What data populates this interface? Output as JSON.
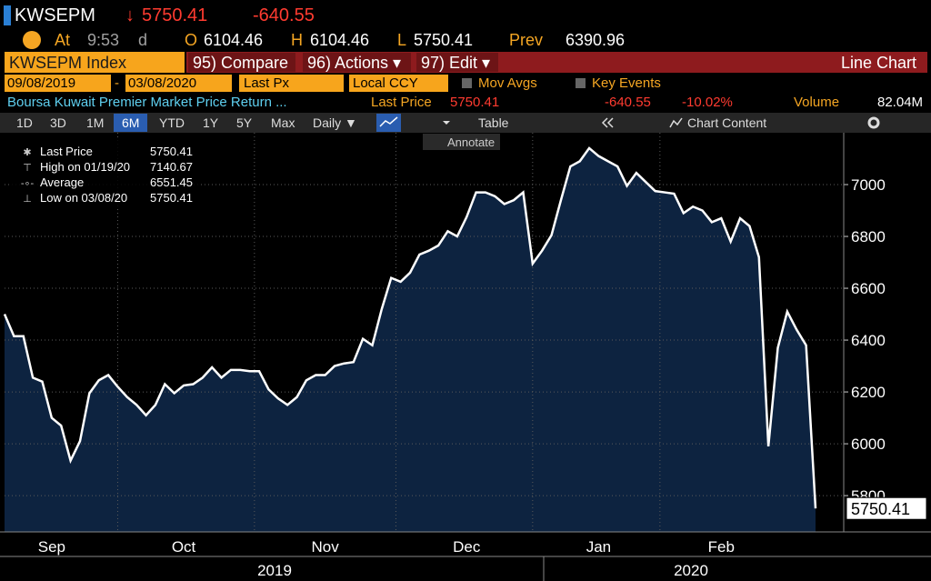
{
  "header": {
    "ticker": "KWSEPM",
    "arrow": "↓",
    "last": "5750.41",
    "change": "-640.55",
    "at_label": "At",
    "time": "9:53",
    "time_flag": "d",
    "open_label": "O",
    "open": "6104.46",
    "high_label": "H",
    "high": "6104.46",
    "low_label": "L",
    "low": "5750.41",
    "prev_label": "Prev",
    "prev": "6390.96"
  },
  "command_bar": {
    "security": "KWSEPM Index",
    "buttons": [
      "95) Compare",
      "96) Actions ▾",
      "97) Edit ▾"
    ],
    "chart_type": "Line Chart"
  },
  "settings": {
    "start_date": "09/08/2019",
    "date_sep": "-",
    "end_date": "03/08/2020",
    "field": "Last Px",
    "currency": "Local CCY",
    "options": [
      "Mov Avgs",
      "Key Events"
    ]
  },
  "info": {
    "description": "Boursa Kuwait Premier Market Price Return ...",
    "last_price_label": "Last Price",
    "last_price": "5750.41",
    "change": "-640.55",
    "change_pct": "-10.02%",
    "volume_label": "Volume",
    "volume": "82.04M"
  },
  "toolbar": {
    "periods": [
      "1D",
      "3D",
      "1M",
      "6M",
      "YTD",
      "1Y",
      "5Y",
      "Max"
    ],
    "frequency": "Daily ▼",
    "table": "Table",
    "chart_content": "Chart Content",
    "annotate": "Annotate"
  },
  "chart_data": {
    "type": "line",
    "color": "#ffffff",
    "area_color": "#0d2340",
    "grid": true,
    "categories": [
      null,
      null,
      null,
      null,
      null,
      "Sep",
      null,
      null,
      null,
      null,
      null,
      null,
      null,
      null,
      null,
      null,
      null,
      null,
      null,
      "Oct",
      null,
      null,
      null,
      null,
      null,
      null,
      null,
      null,
      null,
      null,
      null,
      null,
      null,
      null,
      "Nov",
      null,
      null,
      null,
      null,
      null,
      null,
      null,
      null,
      null,
      null,
      null,
      null,
      null,
      null,
      "Dec",
      null,
      null,
      null,
      null,
      null,
      null,
      null,
      null,
      null,
      null,
      null,
      null,
      null,
      "Jan",
      null,
      null,
      null,
      null,
      null,
      null,
      null,
      null,
      null,
      null,
      null,
      null,
      "Feb",
      null,
      null,
      null,
      null,
      null,
      null,
      null,
      null,
      null,
      null
    ],
    "values": [
      6500,
      6415,
      6415,
      6255,
      6240,
      6100,
      6070,
      5935,
      6010,
      6195,
      6245,
      6265,
      6220,
      6180,
      6150,
      6110,
      6150,
      6230,
      6195,
      6225,
      6230,
      6255,
      6295,
      6255,
      6285,
      6285,
      6280,
      6280,
      6210,
      6175,
      6150,
      6180,
      6245,
      6265,
      6265,
      6300,
      6310,
      6315,
      6405,
      6380,
      6520,
      6640,
      6625,
      6660,
      6730,
      6745,
      6765,
      6820,
      6800,
      6875,
      6970,
      6970,
      6955,
      6925,
      6940,
      6970,
      6695,
      6745,
      6805,
      6940,
      7070,
      7090,
      7140.67,
      7110,
      7090,
      7070,
      6995,
      7045,
      7010,
      6975,
      6970,
      6965,
      6890,
      6915,
      6900,
      6855,
      6870,
      6780,
      6870,
      6840,
      6720,
      5990,
      6370,
      6510,
      6440,
      6380,
      5750.41
    ],
    "years": [
      "2019",
      "2020"
    ],
    "ylim": [
      5660,
      7200
    ],
    "yticks": [
      5800,
      6000,
      6200,
      6400,
      6600,
      6800,
      7000
    ],
    "legend": [
      {
        "label": "Last Price",
        "value": "5750.41"
      },
      {
        "label": "High on 01/19/20",
        "value": "7140.67"
      },
      {
        "label": "Average",
        "value": "6551.45"
      },
      {
        "label": "Low on 03/08/20",
        "value": "5750.41"
      }
    ]
  }
}
